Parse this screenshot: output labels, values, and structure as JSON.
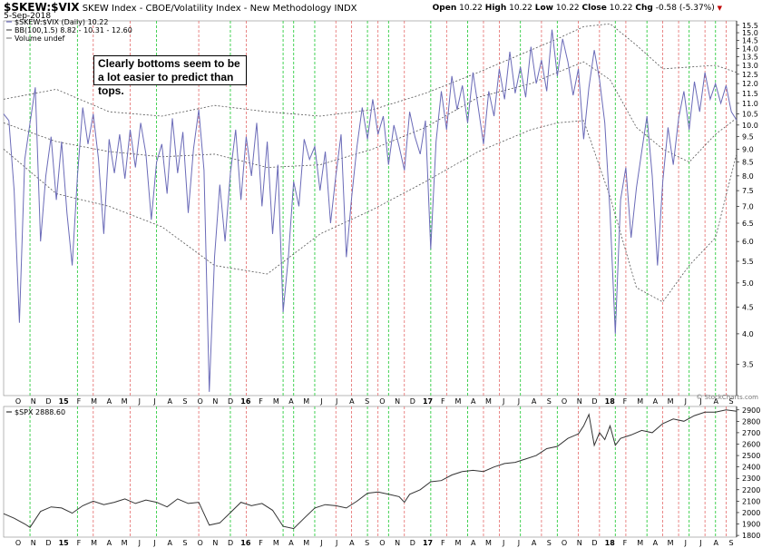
{
  "header": {
    "symbol": "$SKEW:$VIX",
    "description": "SKEW Index - CBOE/Volatility Index - New Methodology",
    "exchange": "INDX",
    "date": "5-Sep-2018",
    "open_label": "Open",
    "open": "10.22",
    "high_label": "High",
    "high": "10.22",
    "low_label": "Low",
    "low": "10.22",
    "close_label": "Close",
    "close": "10.22",
    "chg_label": "Chg",
    "chg": "-0.58 (-5.37%)"
  },
  "legend": {
    "main_series": "$SKEW:$VIX (Daily) 10.22",
    "bb": "BB(100,1.5) 8.82 - 10.31 - 12.60",
    "volume": "Volume undef"
  },
  "annotation": "Clearly bottoms seem to be a lot easier to predict than tops.",
  "watermark": "© StockCharts.com",
  "lower_legend": "$SPX 2888.60",
  "colors": {
    "price_line": "#6b6bb8",
    "bb_line": "#555555",
    "spx_line": "#333333",
    "green_vline": "#2ecc40",
    "red_vline": "#e05555"
  },
  "chart_data": [
    {
      "type": "line",
      "title": "$SKEW:$VIX",
      "y_scale": "log",
      "y_ticks": [
        3.5,
        4.0,
        4.5,
        5.0,
        5.5,
        6.0,
        6.5,
        7.0,
        7.5,
        8.0,
        8.5,
        9.0,
        9.5,
        10.0,
        10.5,
        11.0,
        11.5,
        12.0,
        12.5,
        13.0,
        13.5,
        14.0,
        14.5,
        15.0,
        15.5
      ],
      "ylim": [
        3.05,
        15.8
      ],
      "x_tick_labels": [
        "O",
        "N",
        "D",
        "15",
        "F",
        "M",
        "A",
        "M",
        "J",
        "J",
        "A",
        "S",
        "O",
        "N",
        "D",
        "16",
        "F",
        "M",
        "A",
        "M",
        "J",
        "J",
        "A",
        "S",
        "O",
        "N",
        "D",
        "17",
        "F",
        "M",
        "A",
        "M",
        "J",
        "J",
        "A",
        "S",
        "O",
        "N",
        "D",
        "18",
        "F",
        "M",
        "A",
        "M",
        "J",
        "J",
        "A",
        "S"
      ],
      "bold_ticks": [
        "15",
        "16",
        "17",
        "18"
      ],
      "series_points": [
        [
          0,
          10.5
        ],
        [
          2,
          10.2
        ],
        [
          4,
          7.5
        ],
        [
          6,
          4.2
        ],
        [
          8,
          8.6
        ],
        [
          10,
          10.1
        ],
        [
          12,
          11.8
        ],
        [
          14,
          6.0
        ],
        [
          16,
          8.0
        ],
        [
          18,
          9.5
        ],
        [
          20,
          7.2
        ],
        [
          22,
          9.3
        ],
        [
          24,
          6.8
        ],
        [
          26,
          5.4
        ],
        [
          28,
          8.0
        ],
        [
          30,
          10.8
        ],
        [
          32,
          9.2
        ],
        [
          34,
          10.5
        ],
        [
          36,
          8.6
        ],
        [
          38,
          6.2
        ],
        [
          40,
          9.4
        ],
        [
          42,
          8.1
        ],
        [
          44,
          9.6
        ],
        [
          46,
          7.9
        ],
        [
          48,
          9.8
        ],
        [
          50,
          8.3
        ],
        [
          52,
          10.1
        ],
        [
          54,
          8.8
        ],
        [
          56,
          6.6
        ],
        [
          58,
          8.5
        ],
        [
          60,
          9.2
        ],
        [
          62,
          7.4
        ],
        [
          64,
          10.3
        ],
        [
          66,
          8.1
        ],
        [
          68,
          9.7
        ],
        [
          70,
          6.8
        ],
        [
          72,
          9.0
        ],
        [
          74,
          10.7
        ],
        [
          76,
          8.2
        ],
        [
          78,
          3.1
        ],
        [
          80,
          5.6
        ],
        [
          82,
          7.7
        ],
        [
          84,
          6.0
        ],
        [
          86,
          8.1
        ],
        [
          88,
          9.8
        ],
        [
          90,
          7.2
        ],
        [
          92,
          9.5
        ],
        [
          94,
          8.0
        ],
        [
          96,
          10.1
        ],
        [
          98,
          7.0
        ],
        [
          100,
          9.3
        ],
        [
          102,
          6.2
        ],
        [
          104,
          8.4
        ],
        [
          106,
          4.4
        ],
        [
          108,
          5.6
        ],
        [
          110,
          7.8
        ],
        [
          112,
          7.0
        ],
        [
          114,
          9.4
        ],
        [
          116,
          8.6
        ],
        [
          118,
          9.1
        ],
        [
          120,
          7.5
        ],
        [
          122,
          8.9
        ],
        [
          124,
          6.5
        ],
        [
          126,
          8.0
        ],
        [
          128,
          9.6
        ],
        [
          130,
          5.6
        ],
        [
          132,
          7.3
        ],
        [
          134,
          9.1
        ],
        [
          136,
          10.8
        ],
        [
          138,
          9.4
        ],
        [
          140,
          11.2
        ],
        [
          142,
          9.6
        ],
        [
          144,
          10.4
        ],
        [
          146,
          8.4
        ],
        [
          148,
          10.0
        ],
        [
          150,
          9.1
        ],
        [
          152,
          8.2
        ],
        [
          154,
          10.6
        ],
        [
          156,
          9.5
        ],
        [
          158,
          8.8
        ],
        [
          160,
          10.2
        ],
        [
          162,
          5.8
        ],
        [
          164,
          9.3
        ],
        [
          166,
          11.6
        ],
        [
          168,
          9.8
        ],
        [
          170,
          12.4
        ],
        [
          172,
          10.7
        ],
        [
          174,
          11.9
        ],
        [
          176,
          10.1
        ],
        [
          178,
          12.6
        ],
        [
          180,
          10.8
        ],
        [
          182,
          9.2
        ],
        [
          184,
          11.6
        ],
        [
          186,
          10.4
        ],
        [
          188,
          12.8
        ],
        [
          190,
          11.2
        ],
        [
          192,
          13.8
        ],
        [
          194,
          11.5
        ],
        [
          196,
          12.9
        ],
        [
          198,
          11.3
        ],
        [
          200,
          14.1
        ],
        [
          202,
          12.0
        ],
        [
          204,
          13.3
        ],
        [
          206,
          11.6
        ],
        [
          208,
          15.2
        ],
        [
          210,
          12.4
        ],
        [
          212,
          14.6
        ],
        [
          214,
          13.2
        ],
        [
          216,
          11.4
        ],
        [
          218,
          12.8
        ],
        [
          220,
          9.4
        ],
        [
          222,
          11.8
        ],
        [
          224,
          13.9
        ],
        [
          226,
          12.2
        ],
        [
          228,
          10.1
        ],
        [
          230,
          6.8
        ],
        [
          232,
          4.0
        ],
        [
          234,
          7.2
        ],
        [
          236,
          8.3
        ],
        [
          238,
          6.1
        ],
        [
          240,
          7.6
        ],
        [
          242,
          8.9
        ],
        [
          244,
          10.4
        ],
        [
          246,
          8.0
        ],
        [
          248,
          5.4
        ],
        [
          250,
          7.8
        ],
        [
          252,
          9.9
        ],
        [
          254,
          8.4
        ],
        [
          256,
          10.3
        ],
        [
          258,
          11.6
        ],
        [
          260,
          9.8
        ],
        [
          262,
          12.1
        ],
        [
          264,
          10.6
        ],
        [
          266,
          12.6
        ],
        [
          268,
          11.2
        ],
        [
          270,
          12.0
        ],
        [
          272,
          11.0
        ],
        [
          274,
          11.9
        ],
        [
          276,
          10.6
        ],
        [
          278,
          10.22
        ]
      ],
      "bb_upper": [
        [
          0,
          11.2
        ],
        [
          20,
          11.7
        ],
        [
          40,
          10.6
        ],
        [
          60,
          10.4
        ],
        [
          80,
          10.9
        ],
        [
          100,
          10.6
        ],
        [
          120,
          10.4
        ],
        [
          140,
          10.7
        ],
        [
          160,
          11.5
        ],
        [
          180,
          12.6
        ],
        [
          200,
          13.9
        ],
        [
          210,
          14.6
        ],
        [
          220,
          15.4
        ],
        [
          230,
          15.6
        ],
        [
          240,
          14.2
        ],
        [
          250,
          12.8
        ],
        [
          260,
          12.9
        ],
        [
          270,
          13.0
        ],
        [
          278,
          12.6
        ]
      ],
      "bb_middle": [
        [
          0,
          10.1
        ],
        [
          20,
          9.3
        ],
        [
          40,
          8.9
        ],
        [
          60,
          8.7
        ],
        [
          80,
          8.8
        ],
        [
          100,
          8.3
        ],
        [
          120,
          8.4
        ],
        [
          140,
          9.0
        ],
        [
          160,
          9.9
        ],
        [
          180,
          11.3
        ],
        [
          200,
          12.0
        ],
        [
          210,
          12.6
        ],
        [
          220,
          13.2
        ],
        [
          230,
          12.2
        ],
        [
          240,
          9.9
        ],
        [
          250,
          9.0
        ],
        [
          260,
          8.5
        ],
        [
          270,
          9.6
        ],
        [
          278,
          10.31
        ]
      ],
      "bb_lower": [
        [
          0,
          9.0
        ],
        [
          20,
          7.4
        ],
        [
          40,
          7.0
        ],
        [
          60,
          6.4
        ],
        [
          80,
          5.4
        ],
        [
          100,
          5.2
        ],
        [
          120,
          6.2
        ],
        [
          140,
          6.9
        ],
        [
          160,
          7.8
        ],
        [
          180,
          8.9
        ],
        [
          200,
          9.8
        ],
        [
          210,
          10.1
        ],
        [
          220,
          10.2
        ],
        [
          230,
          7.3
        ],
        [
          240,
          4.9
        ],
        [
          250,
          4.6
        ],
        [
          260,
          5.4
        ],
        [
          270,
          6.1
        ],
        [
          278,
          8.82
        ]
      ]
    },
    {
      "type": "line",
      "title": "$SPX",
      "y_ticks": [
        1800,
        1900,
        2000,
        2100,
        2200,
        2300,
        2400,
        2500,
        2600,
        2700,
        2800,
        2900
      ],
      "ylim": [
        1785,
        2930
      ],
      "series_points": [
        [
          0,
          1990
        ],
        [
          4,
          1950
        ],
        [
          8,
          1900
        ],
        [
          10,
          1870
        ],
        [
          14,
          2010
        ],
        [
          18,
          2050
        ],
        [
          22,
          2040
        ],
        [
          26,
          1995
        ],
        [
          30,
          2060
        ],
        [
          34,
          2100
        ],
        [
          38,
          2070
        ],
        [
          42,
          2090
        ],
        [
          46,
          2120
        ],
        [
          50,
          2080
        ],
        [
          54,
          2110
        ],
        [
          58,
          2090
        ],
        [
          62,
          2050
        ],
        [
          66,
          2120
        ],
        [
          70,
          2080
        ],
        [
          74,
          2090
        ],
        [
          78,
          1890
        ],
        [
          82,
          1910
        ],
        [
          86,
          2000
        ],
        [
          90,
          2090
        ],
        [
          94,
          2060
        ],
        [
          98,
          2080
        ],
        [
          102,
          2020
        ],
        [
          106,
          1880
        ],
        [
          110,
          1860
        ],
        [
          114,
          1950
        ],
        [
          118,
          2040
        ],
        [
          122,
          2070
        ],
        [
          126,
          2060
        ],
        [
          130,
          2040
        ],
        [
          134,
          2100
        ],
        [
          138,
          2170
        ],
        [
          142,
          2180
        ],
        [
          146,
          2160
        ],
        [
          150,
          2140
        ],
        [
          152,
          2090
        ],
        [
          154,
          2160
        ],
        [
          158,
          2200
        ],
        [
          162,
          2270
        ],
        [
          166,
          2280
        ],
        [
          170,
          2330
        ],
        [
          174,
          2360
        ],
        [
          178,
          2370
        ],
        [
          182,
          2360
        ],
        [
          186,
          2400
        ],
        [
          190,
          2430
        ],
        [
          194,
          2440
        ],
        [
          198,
          2470
        ],
        [
          202,
          2500
        ],
        [
          206,
          2560
        ],
        [
          210,
          2580
        ],
        [
          214,
          2650
        ],
        [
          218,
          2690
        ],
        [
          220,
          2760
        ],
        [
          222,
          2860
        ],
        [
          224,
          2590
        ],
        [
          226,
          2700
        ],
        [
          228,
          2640
        ],
        [
          230,
          2760
        ],
        [
          232,
          2590
        ],
        [
          234,
          2650
        ],
        [
          238,
          2680
        ],
        [
          242,
          2720
        ],
        [
          246,
          2700
        ],
        [
          250,
          2780
        ],
        [
          254,
          2820
        ],
        [
          258,
          2800
        ],
        [
          262,
          2850
        ],
        [
          266,
          2880
        ],
        [
          270,
          2880
        ],
        [
          274,
          2900
        ],
        [
          278,
          2888.6
        ]
      ]
    }
  ],
  "vertical_markers": {
    "green": [
      10,
      28,
      58,
      86,
      106,
      110,
      118,
      138,
      146,
      162,
      176,
      196,
      210,
      232,
      244,
      260,
      270
    ],
    "red": [
      34,
      48,
      74,
      92,
      126,
      132,
      142,
      152,
      168,
      182,
      188,
      204,
      218,
      226,
      236,
      250,
      256,
      266,
      274
    ]
  }
}
